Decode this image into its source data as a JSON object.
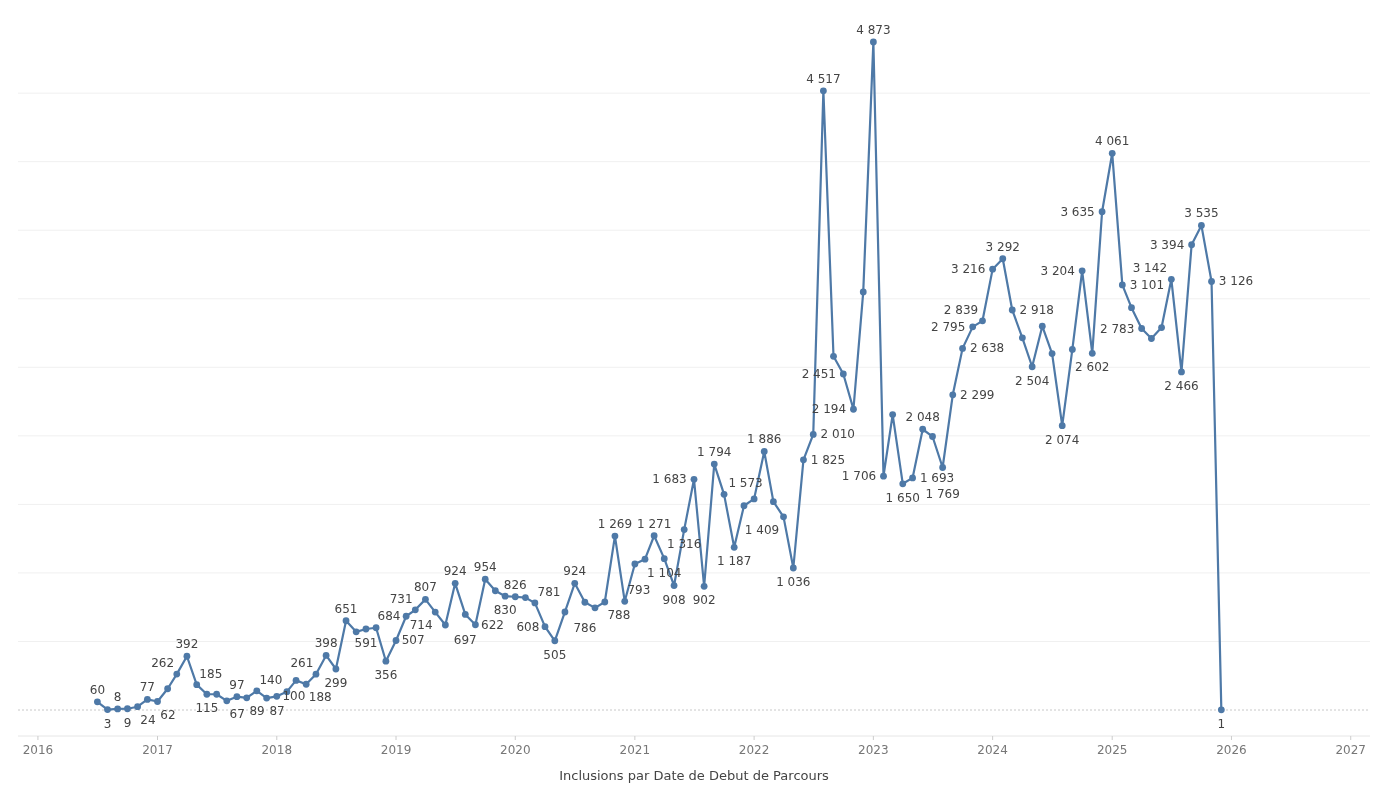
{
  "chart_data": {
    "type": "line",
    "xlabel": "Inclusions par Date de Debut de Parcours",
    "x": [
      "2016-07",
      "2016-08",
      "2016-09",
      "2016-10",
      "2016-11",
      "2016-12",
      "2017-01",
      "2017-02",
      "2017-03",
      "2017-04",
      "2017-05",
      "2017-06",
      "2017-07",
      "2017-08",
      "2017-09",
      "2017-10",
      "2017-11",
      "2017-12",
      "2018-01",
      "2018-02",
      "2018-03",
      "2018-04",
      "2018-05",
      "2018-06",
      "2018-07",
      "2018-08",
      "2018-09",
      "2018-10",
      "2018-11",
      "2018-12",
      "2019-01",
      "2019-02",
      "2019-03",
      "2019-04",
      "2019-05",
      "2019-06",
      "2019-07",
      "2019-08",
      "2019-09",
      "2019-10",
      "2019-11",
      "2019-12",
      "2020-01",
      "2020-02",
      "2020-03",
      "2020-04",
      "2020-05",
      "2020-06",
      "2020-07",
      "2020-08",
      "2020-09",
      "2020-10",
      "2020-11",
      "2020-12",
      "2021-01",
      "2021-02",
      "2021-03",
      "2021-04",
      "2021-05",
      "2021-06",
      "2021-07",
      "2021-08",
      "2021-09",
      "2021-10",
      "2021-11",
      "2021-12",
      "2022-01",
      "2022-02",
      "2022-03",
      "2022-04",
      "2022-05",
      "2022-06",
      "2022-07",
      "2022-08",
      "2022-09",
      "2022-10",
      "2022-11",
      "2022-12",
      "2023-01",
      "2023-02",
      "2023-03",
      "2023-04",
      "2023-05",
      "2023-06",
      "2023-07",
      "2023-08",
      "2023-09",
      "2023-10",
      "2023-11",
      "2023-12",
      "2024-01",
      "2024-02",
      "2024-03",
      "2024-04",
      "2024-05",
      "2024-06",
      "2024-07",
      "2024-08",
      "2024-09",
      "2024-10",
      "2024-11",
      "2024-12",
      "2025-01",
      "2025-02",
      "2025-03",
      "2025-04",
      "2025-05",
      "2025-06",
      "2025-07",
      "2025-08",
      "2025-09",
      "2025-10",
      "2025-11",
      "2025-12"
    ],
    "series": [
      {
        "color": "#4e79a7",
        "values": [
          60,
          3,
          8,
          9,
          24,
          77,
          62,
          155,
          262,
          392,
          185,
          115,
          115,
          67,
          97,
          89,
          140,
          87,
          100,
          134,
          216,
          188,
          261,
          398,
          299,
          651,
          570,
          591,
          600,
          356,
          507,
          684,
          731,
          807,
          714,
          620,
          924,
          697,
          622,
          954,
          870,
          830,
          826,
          820,
          781,
          608,
          505,
          715,
          924,
          786,
          745,
          788,
          1269,
          793,
          1065,
          1100,
          1271,
          1104,
          908,
          1316,
          1683,
          902,
          1794,
          1573,
          1187,
          1490,
          1540,
          1886,
          1520,
          1409,
          1036,
          1825,
          2010,
          4517,
          2580,
          2451,
          2194,
          3050,
          4873,
          1706,
          2155,
          1650,
          1693,
          2048,
          1995,
          1769,
          2299,
          2638,
          2795,
          2839,
          3216,
          3292,
          2918,
          2715,
          2504,
          2800,
          2600,
          2074,
          2630,
          3204,
          2602,
          3635,
          4061,
          3101,
          2935,
          2783,
          2710,
          2790,
          3142,
          2466,
          3394,
          3535,
          3126,
          1
        ],
        "value_labels": [
          "60",
          "3",
          "8",
          "9",
          "24",
          "77",
          "62",
          null,
          "262",
          "392",
          "185",
          "115",
          null,
          "67",
          "97",
          "89",
          "140",
          "87",
          "100",
          null,
          null,
          "188",
          "261",
          "398",
          "299",
          "651",
          null,
          "591",
          null,
          "356",
          "507",
          "684",
          "731",
          "807",
          "714",
          null,
          "924",
          "697",
          "622",
          "954",
          null,
          "830",
          "826",
          null,
          "781",
          "608",
          "505",
          null,
          "924",
          "786",
          null,
          "788",
          "1 269",
          "793",
          null,
          null,
          "1 271",
          "1 104",
          "908",
          "1 316",
          "1 683",
          "902",
          "1 794",
          "1 573",
          "1 187",
          null,
          null,
          "1 886",
          null,
          "1 409",
          "1 036",
          "1 825",
          "2 010",
          "4 517",
          null,
          "2 451",
          "2 194",
          null,
          "4 873",
          "1 706",
          null,
          "1 650",
          "1 693",
          "2 048",
          null,
          "1 769",
          "2 299",
          "2 638",
          "2 795",
          "2 839",
          "3 216",
          "3 292",
          "2 918",
          null,
          "2 504",
          null,
          null,
          "2 074",
          null,
          "3 204",
          "2 602",
          "3 635",
          "4 061",
          "3 101",
          null,
          "2 783",
          null,
          null,
          "3 142",
          "2 466",
          "3 394",
          "3 535",
          "3 126",
          "1"
        ]
      }
    ],
    "xlim": [
      "2015-11",
      "2027-03"
    ],
    "xticks": [
      "2016",
      "2017",
      "2018",
      "2019",
      "2020",
      "2021",
      "2022",
      "2023",
      "2024",
      "2025",
      "2026",
      "2027"
    ],
    "ref_lines": [
      {
        "axis": "y",
        "value": 0,
        "label": null,
        "color": "#c8c8c8",
        "line_style": "dotted"
      }
    ],
    "yticks": [
      {
        "value": 500,
        "label": null
      },
      {
        "value": 1000,
        "label": null
      },
      {
        "value": 1500,
        "label": null
      },
      {
        "value": 2000,
        "label": null
      },
      {
        "value": 2500,
        "label": null
      },
      {
        "value": 3000,
        "label": null
      },
      {
        "value": 3500,
        "label": null
      },
      {
        "value": 4000,
        "label": null
      },
      {
        "value": 4500,
        "label": null
      }
    ],
    "grid": "y",
    "tick_labels": "x",
    "marker": "circle",
    "line_style": "solid"
  }
}
